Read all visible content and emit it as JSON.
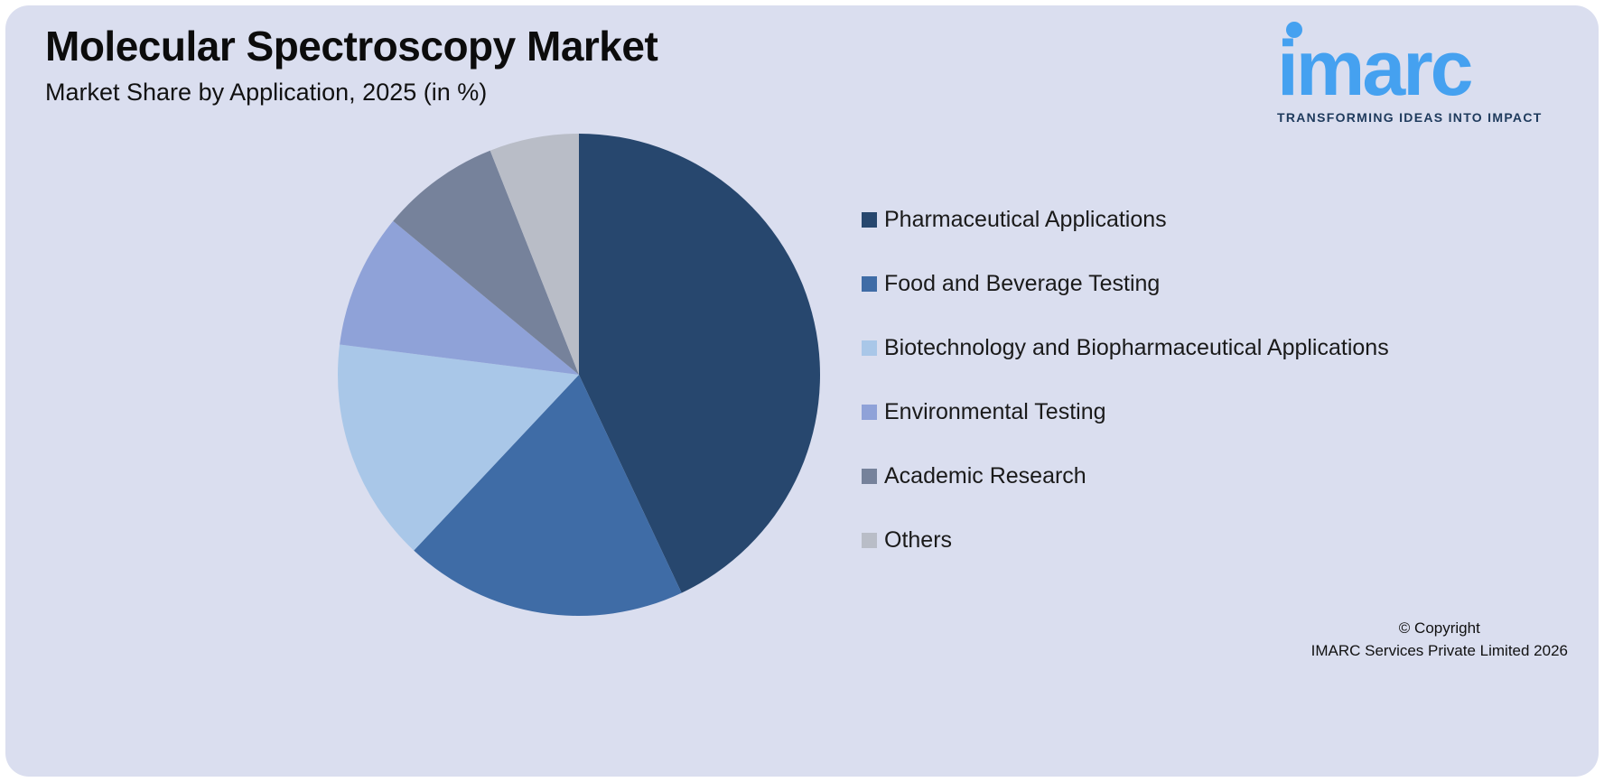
{
  "header": {
    "title": "Molecular Spectroscopy Market",
    "subtitle": "Market Share by Application, 2025 (in %)"
  },
  "logo": {
    "name": "imarc",
    "tagline": "TRANSFORMING IDEAS INTO IMPACT"
  },
  "footer": {
    "line1": "© Copyright",
    "line2": "IMARC Services Private Limited 2026"
  },
  "colors": {
    "background": "#dadeef",
    "logo_blue": "#45a1f0",
    "tagline_navy": "#1e3a5c"
  },
  "chart_data": {
    "type": "pie",
    "title": "Molecular Spectroscopy Market",
    "subtitle": "Market Share by Application, 2025 (in %)",
    "unit": "%",
    "labels": [
      "Pharmaceutical Applications",
      "Food and Beverage Testing",
      "Biotechnology and Biopharmaceutical Applications",
      "Environmental Testing",
      "Academic Research",
      "Others"
    ],
    "values": [
      43,
      19,
      15,
      9,
      8,
      6
    ],
    "colors": [
      "#27476e",
      "#3f6ca6",
      "#a9c7e8",
      "#8fa2d8",
      "#76829b",
      "#b9bdc7"
    ],
    "start_angle": 0,
    "direction": "clockwise",
    "legend_position": "right",
    "data_labels": false
  }
}
